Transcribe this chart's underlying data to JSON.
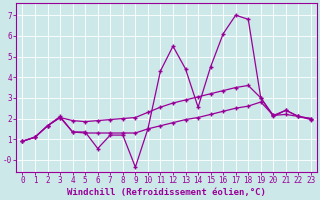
{
  "xlabel": "Windchill (Refroidissement éolien,°C)",
  "background_color": "#cce8e8",
  "line_color": "#990099",
  "grid_color": "#ffffff",
  "xlim": [
    -0.5,
    23.5
  ],
  "ylim": [
    -0.6,
    7.6
  ],
  "xticks": [
    0,
    1,
    2,
    3,
    4,
    5,
    6,
    7,
    8,
    9,
    10,
    11,
    12,
    13,
    14,
    15,
    16,
    17,
    18,
    19,
    20,
    21,
    22,
    23
  ],
  "yticks": [
    0,
    1,
    2,
    3,
    4,
    5,
    6,
    7
  ],
  "ytick_labels": [
    "-0",
    "1",
    "2",
    "3",
    "4",
    "5",
    "6",
    "7"
  ],
  "series1_x": [
    0,
    1,
    2,
    3,
    4,
    5,
    6,
    7,
    8,
    9,
    10,
    11,
    12,
    13,
    14,
    15,
    16,
    17,
    18,
    19,
    20,
    21,
    22,
    23
  ],
  "series1_y": [
    0.9,
    1.1,
    1.65,
    2.1,
    1.35,
    1.35,
    0.55,
    1.2,
    1.2,
    -0.35,
    1.5,
    4.3,
    5.5,
    4.4,
    2.55,
    4.5,
    6.1,
    7.0,
    6.8,
    3.0,
    2.1,
    2.4,
    2.1,
    2.0
  ],
  "series2_x": [
    0,
    1,
    2,
    3,
    4,
    5,
    6,
    7,
    8,
    9,
    10,
    11,
    12,
    13,
    14,
    15,
    16,
    17,
    18,
    19,
    20,
    21,
    22,
    23
  ],
  "series2_y": [
    0.9,
    1.1,
    1.65,
    2.05,
    1.9,
    1.85,
    1.9,
    1.95,
    2.0,
    2.05,
    2.3,
    2.55,
    2.75,
    2.9,
    3.05,
    3.2,
    3.35,
    3.5,
    3.6,
    3.0,
    2.15,
    2.4,
    2.1,
    2.0
  ],
  "series3_x": [
    0,
    1,
    2,
    3,
    4,
    5,
    6,
    7,
    8,
    9,
    10,
    11,
    12,
    13,
    14,
    15,
    16,
    17,
    18,
    19,
    20,
    21,
    22,
    23
  ],
  "series3_y": [
    0.9,
    1.1,
    1.65,
    2.05,
    1.35,
    1.3,
    1.3,
    1.3,
    1.3,
    1.3,
    1.5,
    1.65,
    1.8,
    1.95,
    2.05,
    2.2,
    2.35,
    2.5,
    2.6,
    2.8,
    2.15,
    2.2,
    2.1,
    1.95
  ],
  "marker": "+",
  "markersize": 3,
  "linewidth": 0.9,
  "xlabel_fontsize": 6.5,
  "tick_fontsize": 5.5
}
